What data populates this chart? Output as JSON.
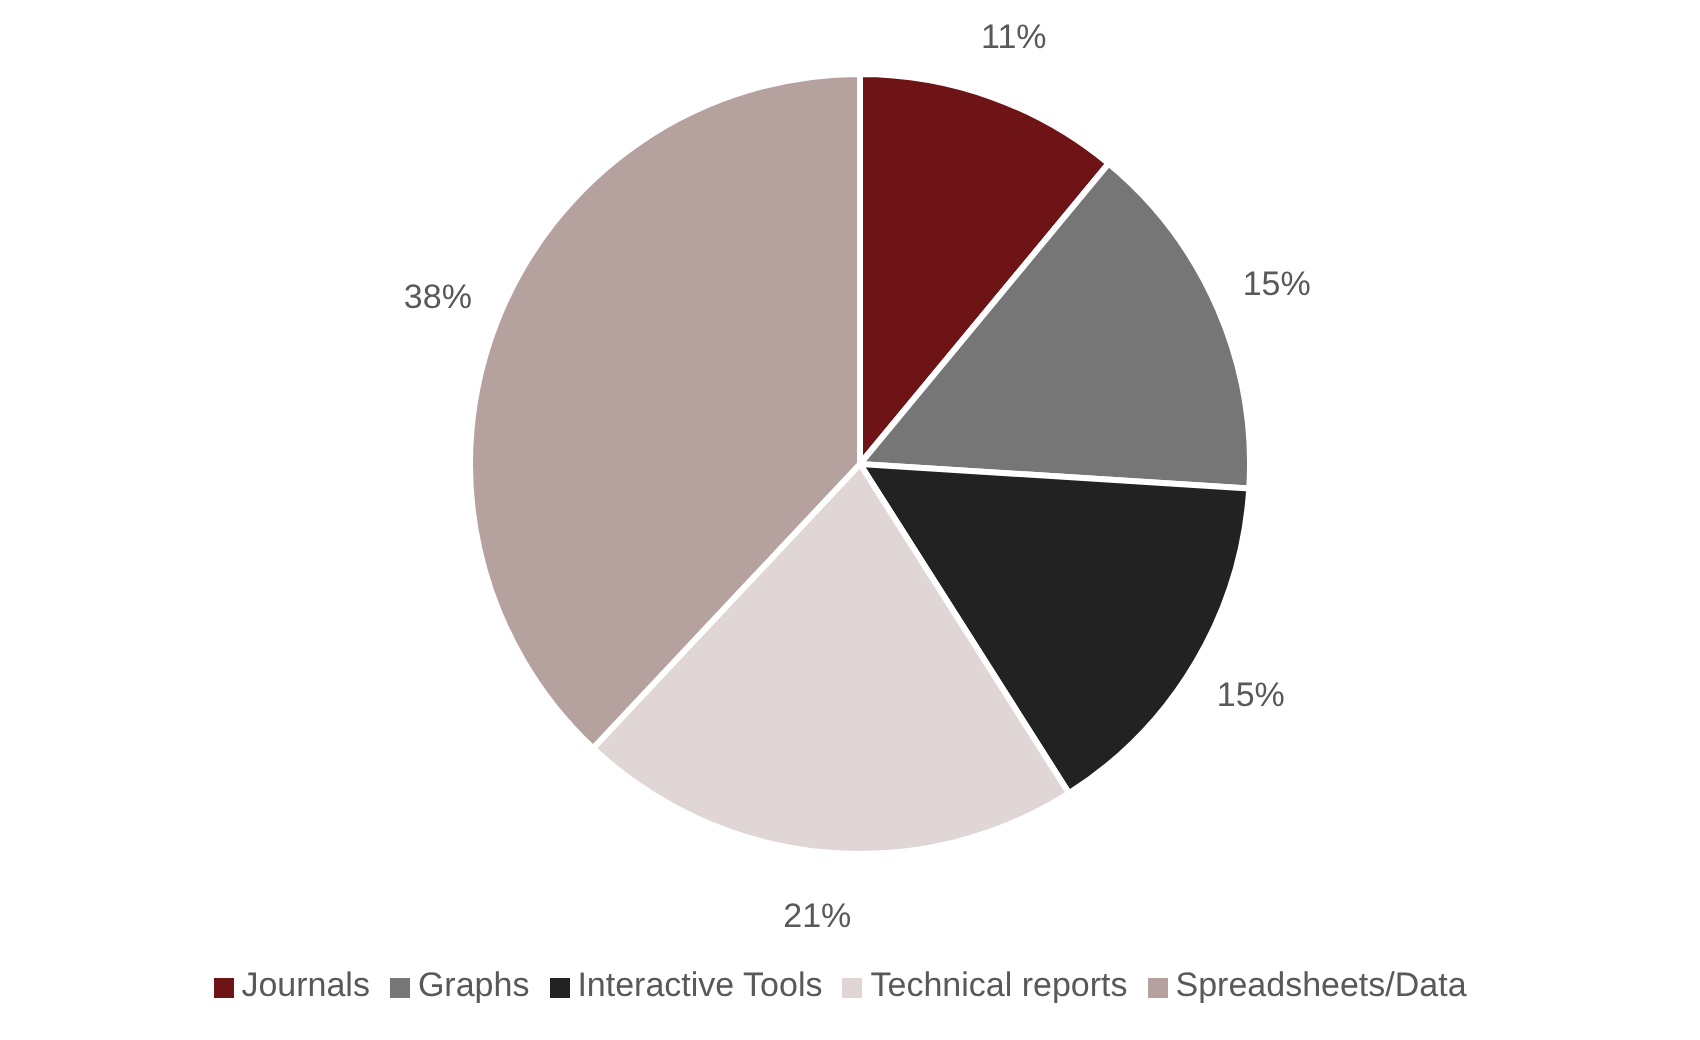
{
  "chart_data": {
    "type": "pie",
    "categories": [
      "Journals",
      "Graphs",
      "Interactive Tools",
      "Technical reports",
      "Spreadsheets/Data"
    ],
    "values": [
      11,
      15,
      15,
      21,
      38
    ],
    "colors": [
      "#6e1416",
      "#767676",
      "#222222",
      "#e0d6d6",
      "#b5a19e"
    ],
    "value_labels": [
      "11%",
      "15%",
      "15%",
      "21%",
      "38%"
    ],
    "legend": "bottom"
  }
}
